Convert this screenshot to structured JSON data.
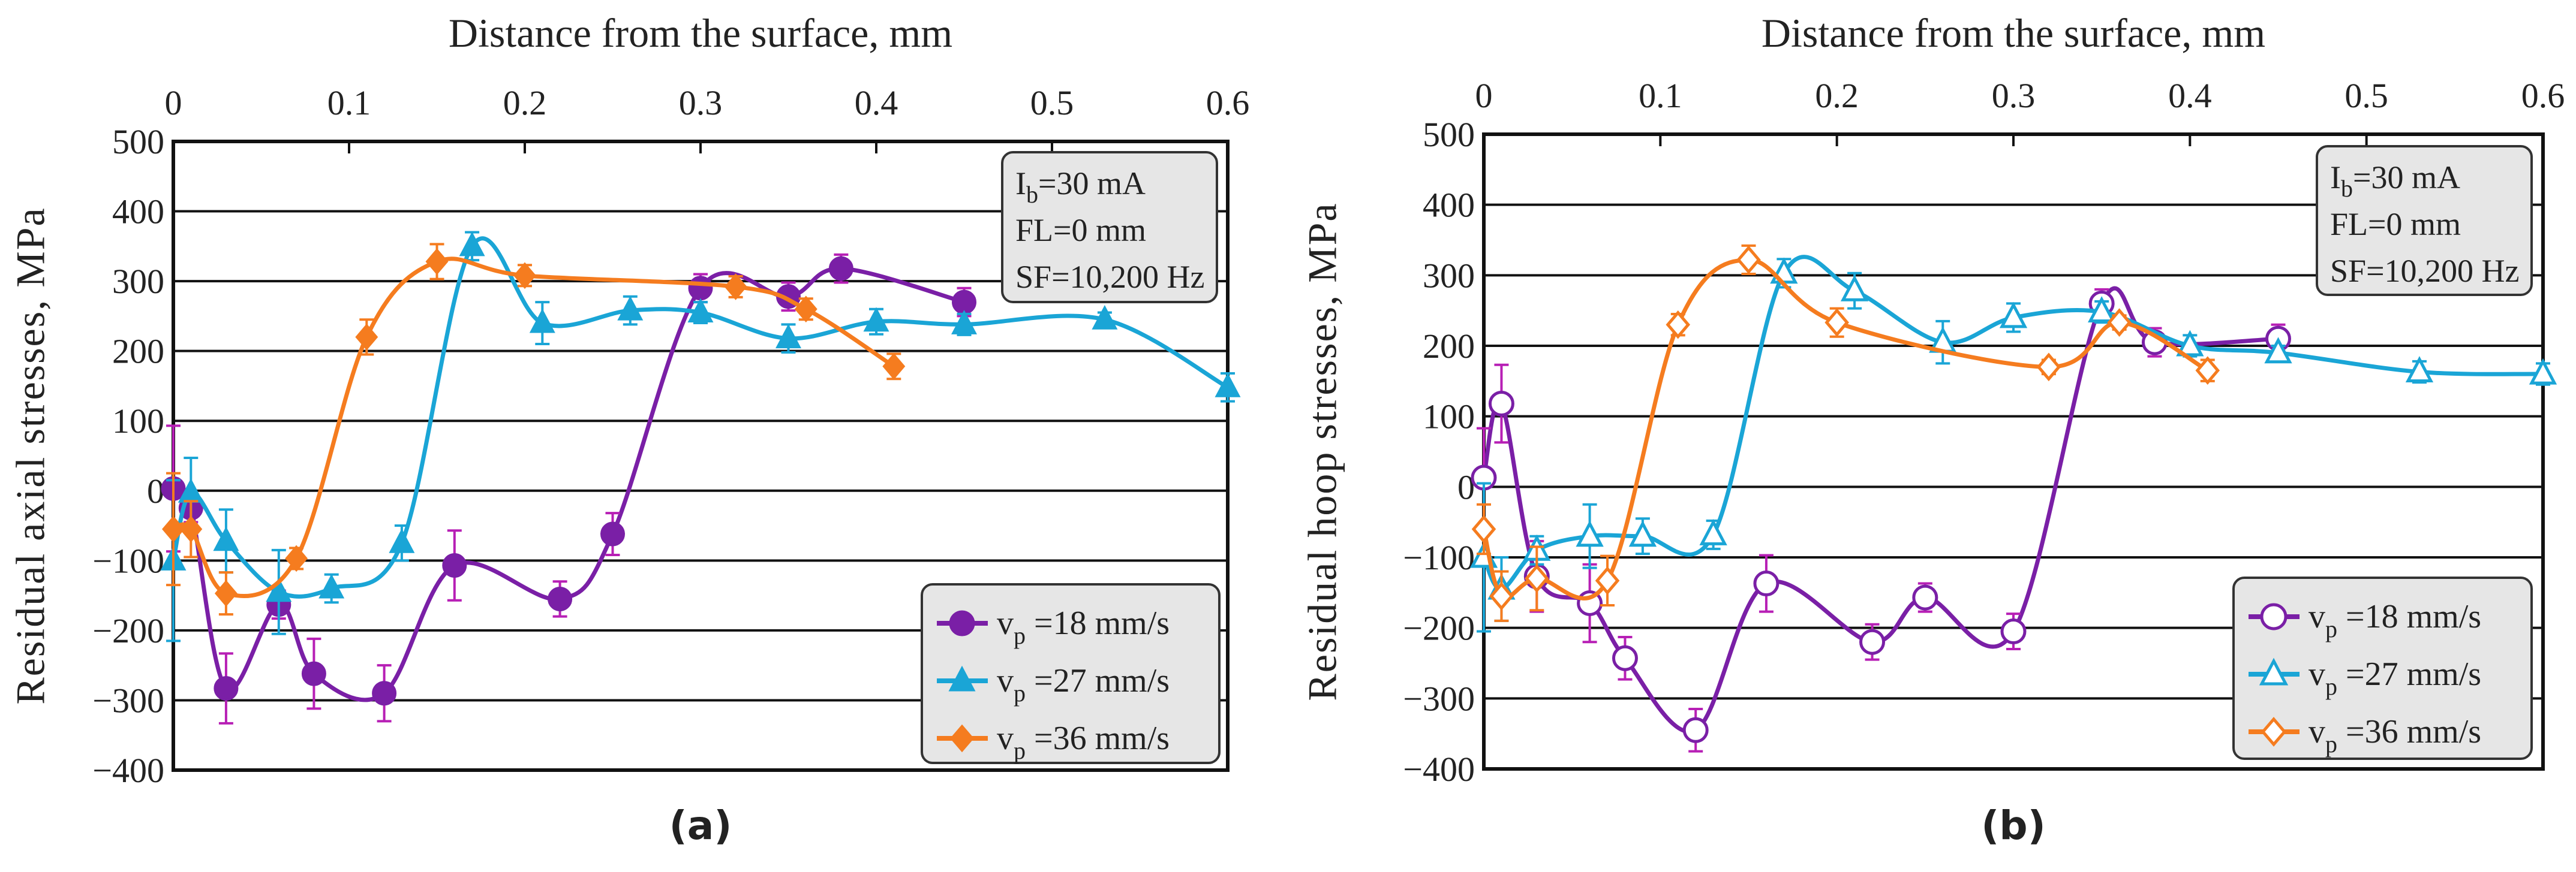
{
  "colors": {
    "s18": "#7a1fa6",
    "s27": "#1aa5d6",
    "s36": "#f57c1f",
    "err18": "#b71fb5",
    "box": "#e6e6e6"
  },
  "chart_data": [
    {
      "type": "line",
      "panel_label": "(a)",
      "title": "Distance from the surface, mm",
      "xlabel": "Distance from the surface, mm",
      "ylabel": "Residual axial stresses, MPa",
      "xlim": [
        0,
        0.6
      ],
      "ylim": [
        -400,
        500
      ],
      "x_ticks": [
        "0",
        "0.1",
        "0.2",
        "0.3",
        "0.4",
        "0.5",
        "0.6"
      ],
      "y_ticks": [
        "500",
        "400",
        "300",
        "200",
        "100",
        "0",
        "−100",
        "−200",
        "−300",
        "−400"
      ],
      "grid": true,
      "legend_position": "bottom-right",
      "marker_fill": "filled",
      "info": [
        {
          "pre": "I",
          "sub": "b",
          "post": "=30 mA"
        },
        {
          "pre": "FL=0 mm",
          "sub": "",
          "post": ""
        },
        {
          "pre": "SF=10,200 Hz",
          "sub": "",
          "post": ""
        }
      ],
      "series": [
        {
          "name": "vp =18 mm/s",
          "pre": "v",
          "sub": "p",
          "post": " =18 mm/s",
          "marker": "circle",
          "color_key": "s18",
          "x": [
            0,
            0.01,
            0.03,
            0.06,
            0.08,
            0.12,
            0.16,
            0.22,
            0.25,
            0.3,
            0.35,
            0.38,
            0.45
          ],
          "y": [
            3,
            -25,
            -283,
            -163,
            -262,
            -290,
            -107,
            -155,
            -62,
            290,
            278,
            318,
            270
          ],
          "err": [
            90,
            20,
            50,
            20,
            50,
            40,
            50,
            25,
            30,
            20,
            20,
            20,
            20
          ]
        },
        {
          "name": "vp =27 mm/s",
          "pre": "v",
          "sub": "p",
          "post": " =27 mm/s",
          "marker": "triangle",
          "color_key": "s27",
          "x": [
            0,
            0.01,
            0.03,
            0.06,
            0.09,
            0.13,
            0.17,
            0.21,
            0.26,
            0.3,
            0.35,
            0.4,
            0.45,
            0.53,
            0.6
          ],
          "y": [
            -100,
            -3,
            -72,
            -145,
            -140,
            -75,
            350,
            240,
            258,
            255,
            218,
            242,
            238,
            245,
            148
          ],
          "err": [
            115,
            50,
            45,
            60,
            20,
            25,
            20,
            30,
            20,
            15,
            20,
            18,
            15,
            10,
            20
          ]
        },
        {
          "name": "vp =36 mm/s",
          "pre": "v",
          "sub": "p",
          "post": " =36 mm/s",
          "marker": "diamond",
          "color_key": "s36",
          "x": [
            0,
            0.01,
            0.03,
            0.07,
            0.11,
            0.15,
            0.2,
            0.32,
            0.36,
            0.41
          ],
          "y": [
            -55,
            -55,
            -147,
            -97,
            220,
            328,
            308,
            292,
            260,
            178
          ],
          "err": [
            80,
            40,
            30,
            15,
            25,
            25,
            15,
            15,
            15,
            18
          ]
        }
      ]
    },
    {
      "type": "line",
      "panel_label": "(b)",
      "title": "Distance from the surface, mm",
      "xlabel": "Distance from the surface, mm",
      "ylabel": "Residual hoop stresses, MPa",
      "xlim": [
        0,
        0.6
      ],
      "ylim": [
        -400,
        500
      ],
      "x_ticks": [
        "0",
        "0.1",
        "0.2",
        "0.3",
        "0.4",
        "0.5",
        "0.6"
      ],
      "y_ticks": [
        "500",
        "400",
        "300",
        "200",
        "100",
        "0",
        "−100",
        "−200",
        "−300",
        "−400"
      ],
      "grid": true,
      "legend_position": "bottom-right",
      "marker_fill": "hollow",
      "info": [
        {
          "pre": "I",
          "sub": "b",
          "post": "=30 mA"
        },
        {
          "pre": "FL=0 mm",
          "sub": "",
          "post": ""
        },
        {
          "pre": "SF=10,200 Hz",
          "sub": "",
          "post": ""
        }
      ],
      "series": [
        {
          "name": "vp =18 mm/s",
          "pre": "v",
          "sub": "p",
          "post": " =18 mm/s",
          "marker": "circle",
          "color_key": "s18",
          "x": [
            0,
            0.01,
            0.03,
            0.06,
            0.08,
            0.12,
            0.16,
            0.22,
            0.25,
            0.3,
            0.35,
            0.38,
            0.45
          ],
          "y": [
            13,
            118,
            -127,
            -165,
            -243,
            -345,
            -137,
            -220,
            -157,
            -205,
            260,
            205,
            210
          ],
          "err": [
            70,
            55,
            50,
            55,
            30,
            30,
            40,
            25,
            20,
            25,
            20,
            20,
            20
          ]
        },
        {
          "name": "vp =27 mm/s",
          "pre": "v",
          "sub": "p",
          "post": " =27 mm/s",
          "marker": "triangle",
          "color_key": "s27",
          "x": [
            0,
            0.01,
            0.03,
            0.06,
            0.09,
            0.13,
            0.17,
            0.21,
            0.26,
            0.3,
            0.35,
            0.4,
            0.45,
            0.53,
            0.6
          ],
          "y": [
            -100,
            -145,
            -90,
            -70,
            -70,
            -68,
            303,
            278,
            205,
            240,
            248,
            200,
            190,
            163,
            160
          ],
          "err": [
            105,
            45,
            20,
            45,
            25,
            20,
            20,
            25,
            30,
            20,
            15,
            15,
            10,
            15,
            15
          ]
        },
        {
          "name": "vp =36 mm/s",
          "pre": "v",
          "sub": "p",
          "post": " =36 mm/s",
          "marker": "diamond",
          "color_key": "s36",
          "x": [
            0,
            0.01,
            0.03,
            0.07,
            0.11,
            0.15,
            0.2,
            0.32,
            0.36,
            0.41
          ],
          "y": [
            -60,
            -155,
            -130,
            -133,
            230,
            322,
            233,
            170,
            233,
            165
          ],
          "err": [
            35,
            35,
            45,
            35,
            15,
            20,
            20,
            10,
            10,
            15
          ]
        }
      ]
    }
  ]
}
